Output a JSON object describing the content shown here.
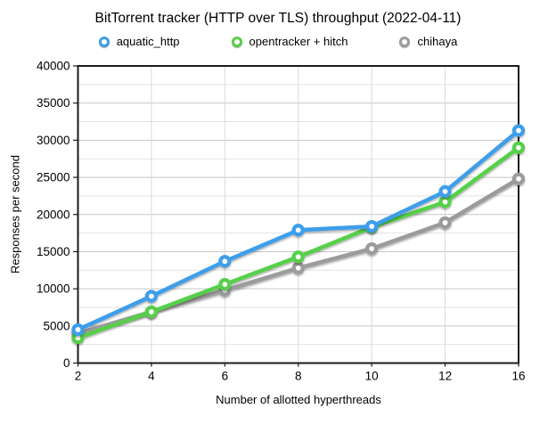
{
  "chart_data": {
    "type": "line",
    "title": "BitTorrent tracker (HTTP over TLS) throughput (2022-04-11)",
    "xlabel": "Number of allotted hyperthreads",
    "ylabel": "Responses per second",
    "x_categories": [
      "2",
      "4",
      "6",
      "8",
      "10",
      "12",
      "16"
    ],
    "y_ticks": [
      0,
      5000,
      10000,
      15000,
      20000,
      25000,
      30000,
      35000,
      40000
    ],
    "y_minor_step": 2500,
    "ylim": [
      0,
      40000
    ],
    "grid": "horizontal major+minor, vertical at each x category",
    "legend_position": "top",
    "marker_style": "open-ring",
    "series": [
      {
        "name": "chihaya",
        "color": "#9b9b9b",
        "values": [
          4000,
          6900,
          9800,
          12800,
          15400,
          18900,
          24800
        ]
      },
      {
        "name": "opentracker + hitch",
        "color": "#57d048",
        "values": [
          3400,
          6900,
          10600,
          14300,
          18300,
          21700,
          29000
        ]
      },
      {
        "name": "aquatic_http",
        "color": "#3e9eeb",
        "values": [
          4500,
          9000,
          13700,
          17900,
          18400,
          23100,
          31300
        ]
      }
    ],
    "legend_order": [
      "aquatic_http",
      "opentracker + hitch",
      "chihaya"
    ],
    "colors": {
      "axis": "#1c1c1c",
      "major_grid": "#c7c7c7",
      "minor_grid": "#e3e3e3",
      "vertical_grid": "#d9d9d9",
      "background": "#ffffff"
    }
  }
}
